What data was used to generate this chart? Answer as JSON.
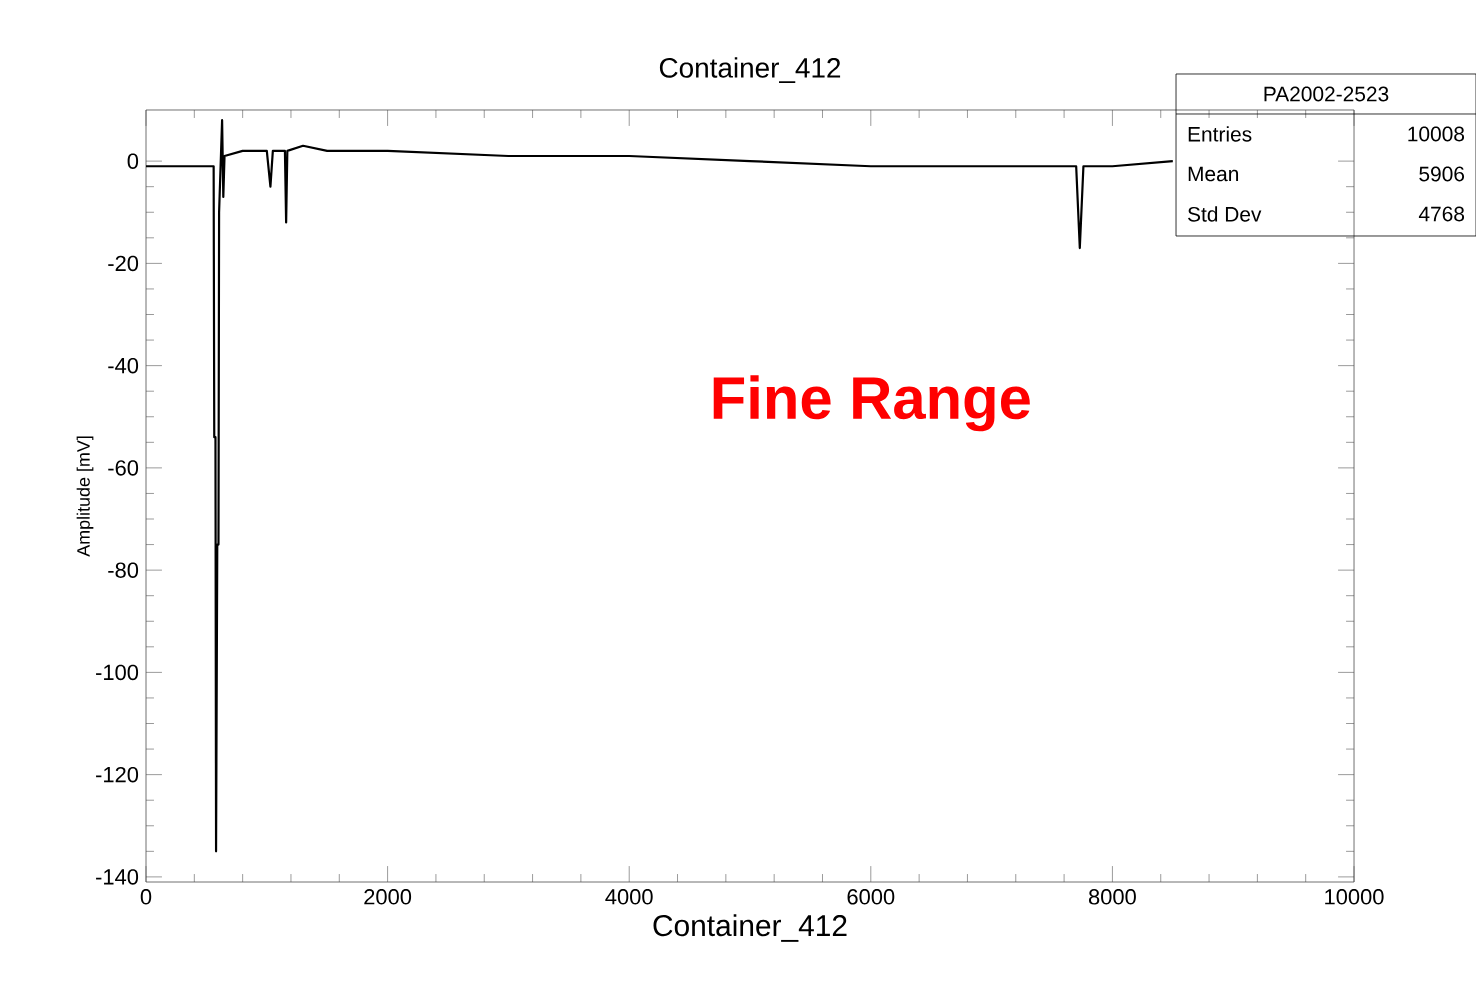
{
  "chart_data": {
    "type": "line",
    "title": "Container_412",
    "xlabel": "Container_412",
    "ylabel": "Amplitude [mV]",
    "annotations": [
      "Fine Range",
      "PA2002-2523",
      "Entries",
      "10008",
      "Mean",
      "5906",
      "Std Dev",
      "4768"
    ],
    "xlim": [
      0,
      10000
    ],
    "ylim": [
      -141,
      10
    ],
    "xticks": [
      0,
      2000,
      4000,
      6000,
      8000,
      10000
    ],
    "yticks": [
      -140,
      -120,
      -100,
      -80,
      -60,
      -40,
      -20,
      0
    ],
    "grid": false,
    "marker": "none",
    "line_style": "solid",
    "series": [
      {
        "color": "#000000",
        "x": [
          0,
          200,
          400,
          560,
          565,
          575,
          580,
          590,
          600,
          605,
          630,
          640,
          650,
          800,
          1000,
          1030,
          1050,
          1150,
          1160,
          1170,
          1300,
          1500,
          2000,
          3000,
          4000,
          5000,
          6000,
          7000,
          7700,
          7730,
          7760,
          8000,
          8500
        ],
        "values": [
          -1,
          -1,
          -1,
          -1,
          -54,
          -54,
          -135,
          -75,
          -75,
          -10,
          8,
          -7,
          1,
          2,
          2,
          -5,
          2,
          2,
          -12,
          2,
          3,
          2,
          2,
          1,
          1,
          0,
          -1,
          -1,
          -1,
          -17,
          -1,
          -1,
          0
        ]
      }
    ]
  }
}
